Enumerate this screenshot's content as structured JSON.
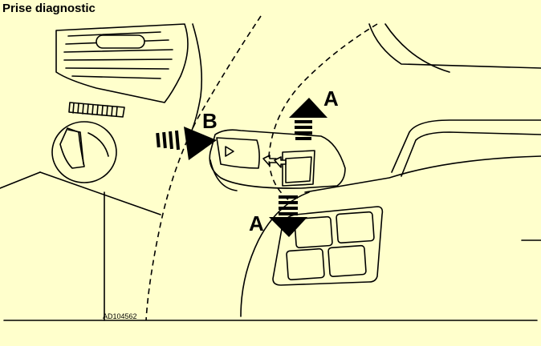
{
  "title": "Prise diagnostic",
  "labels": {
    "a_top": "A",
    "a_bottom": "A",
    "b": "B"
  },
  "reference_code": "AD104562",
  "colors": {
    "background": "#ffffcc",
    "ink": "#000000"
  }
}
